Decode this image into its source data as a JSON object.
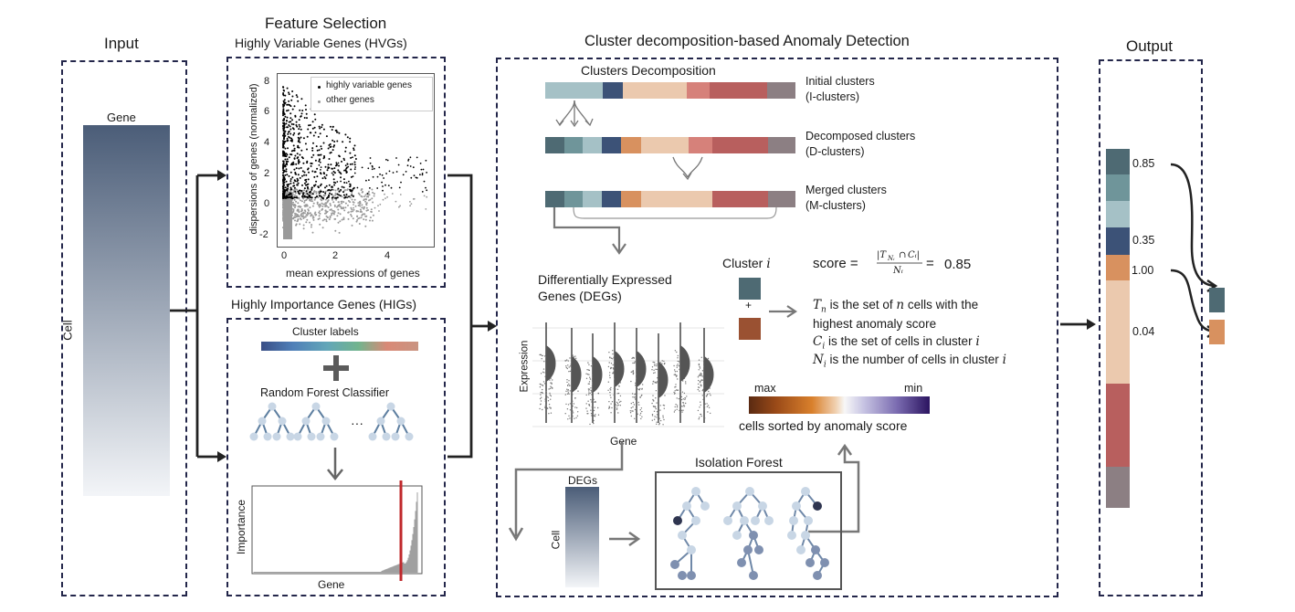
{
  "input": {
    "title": "Input",
    "gene_label": "Gene",
    "cell_label": "Cell"
  },
  "feature_selection": {
    "title": "Feature Selection",
    "hvg_title": "Highly Variable Genes (HVGs)",
    "hvg_plot": {
      "xlabel": "mean expressions of genes",
      "ylabel": "dispersions of genes (normalized)",
      "xticks": [
        "0",
        "2",
        "4"
      ],
      "yticks": [
        "8",
        "6",
        "4",
        "2",
        "0",
        "-2"
      ],
      "legend": [
        "highly variable genes",
        "other genes"
      ]
    },
    "hig_title": "Highly Importance Genes (HIGs)",
    "cluster_labels": "Cluster labels",
    "rf_label": "Random Forest Classifier",
    "ellipsis": "···",
    "importance_plot": {
      "ylabel": "Importance",
      "xlabel": "Gene"
    }
  },
  "cluster_detection": {
    "title": "Cluster decomposition-based Anomaly Detection",
    "decomp_title": "Clusters Decomposition",
    "initial": [
      "Initial clusters",
      "(I-clusters)"
    ],
    "decomposed": [
      "Decomposed clusters",
      "(D-clusters)"
    ],
    "merged": [
      "Merged clusters",
      "(M-clusters)"
    ],
    "deg_title": [
      "Differentially Expressed",
      "Genes (DEGs)"
    ],
    "violin_ylabel": "Expression",
    "violin_xlabel": "Gene",
    "cluster_i": "Cluster",
    "cluster_i_var": "i",
    "plus": "+",
    "score_label": "score =",
    "score_value": "0.85",
    "t_line1": "is the set of",
    "t_line1b": "cells with the",
    "t_line2": "highest anomaly score",
    "c_line": "is the set of cells in cluster",
    "n_line": "is the number of cells in cluster",
    "grad_max": "max",
    "grad_min": "min",
    "sorted_label": "cells sorted by anomaly score",
    "degs_label": "DEGs",
    "deg_cell_label": "Cell",
    "iso_title": "Isolation Forest"
  },
  "output": {
    "title": "Output",
    "scores": [
      "0.85",
      "0.35",
      "1.00",
      "0.04"
    ]
  },
  "colors": {
    "navy": "#23264a",
    "c_dark_slate": "#4e6a73",
    "c_teal": "#6f959a",
    "c_light_teal": "#a5c1c6",
    "c_navy_blue": "#3c5277",
    "c_orange": "#d8915f",
    "c_peach": "#ebc9ae",
    "c_salmon": "#d6817a",
    "c_red": "#b85f5e",
    "c_gray": "#8c7f83",
    "red_line": "#c0282c"
  }
}
